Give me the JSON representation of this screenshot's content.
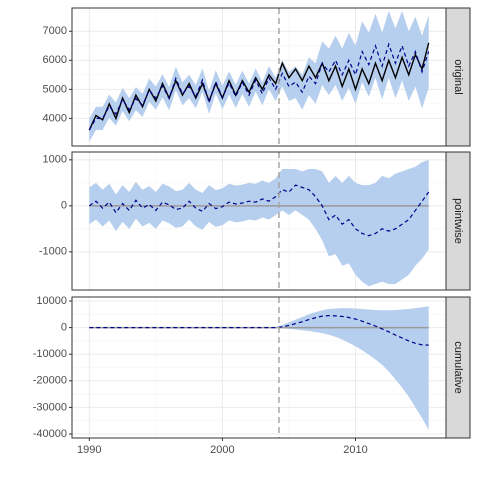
{
  "chart_data": [
    {
      "type": "line",
      "facet": "original",
      "ylim": [
        3050,
        7800
      ],
      "yticks": [
        4000,
        5000,
        6000,
        7000
      ],
      "grid": true,
      "band": {
        "color": "#b7cfee",
        "lower": [
          3200,
          3600,
          3600,
          4020,
          3750,
          4250,
          3900,
          4280,
          4050,
          4570,
          4300,
          4720,
          4280,
          4980,
          4450,
          4700,
          4350,
          4920,
          4150,
          4860,
          4320,
          4820,
          4360,
          4840,
          4400,
          4920,
          4450,
          5000,
          4600,
          5100,
          4600,
          4700,
          4300,
          4800,
          4500,
          5150,
          4800,
          5150,
          4600,
          5050,
          4500,
          5250,
          4750,
          5400,
          4650,
          5400,
          4700,
          5300,
          4600,
          5100,
          4350,
          5050
        ],
        "upper": [
          4000,
          4400,
          4400,
          4820,
          4550,
          5050,
          4700,
          5080,
          4850,
          5370,
          5100,
          5520,
          5080,
          5780,
          5250,
          5500,
          5150,
          5720,
          4950,
          5660,
          5120,
          5620,
          5160,
          5640,
          5200,
          5720,
          5250,
          5800,
          5400,
          6000,
          5600,
          5800,
          5500,
          6100,
          5900,
          6650,
          6400,
          6850,
          6400,
          6950,
          6500,
          7350,
          6950,
          7600,
          6950,
          7700,
          7100,
          7700,
          7000,
          7500,
          6850,
          7550
        ]
      },
      "series": [
        {
          "color": "#000000",
          "dash": false,
          "values": [
            3600,
            4100,
            3950,
            4500,
            4000,
            4700,
            4200,
            4800,
            4400,
            5000,
            4600,
            5200,
            4700,
            5300,
            4800,
            5200,
            4700,
            5200,
            4600,
            5200,
            4700,
            5300,
            4800,
            5300,
            4900,
            5400,
            5000,
            5500,
            5200,
            5900,
            5400,
            5700,
            5300,
            5800,
            5400,
            5900,
            5300,
            5800,
            5100,
            5700,
            5000,
            5700,
            5200,
            5900,
            5300,
            6000,
            5400,
            6100,
            5500,
            6200,
            5700,
            6600
          ]
        },
        {
          "color": "#00008b",
          "dash": true,
          "values": [
            3600,
            4000,
            4000,
            4420,
            4150,
            4650,
            4300,
            4680,
            4450,
            4970,
            4700,
            5120,
            4680,
            5380,
            4850,
            5100,
            4750,
            5320,
            4550,
            5260,
            4720,
            5220,
            4760,
            5240,
            4800,
            5320,
            4850,
            5400,
            5000,
            5550,
            5100,
            5250,
            4900,
            5450,
            5200,
            5900,
            5600,
            6000,
            5500,
            6000,
            5500,
            6300,
            5850,
            6500,
            5800,
            6550,
            5900,
            6500,
            5800,
            6300,
            5600,
            6300
          ]
        }
      ]
    },
    {
      "type": "line",
      "facet": "pointwise",
      "ylim": [
        -1830,
        1170
      ],
      "yticks": [
        -1000,
        0,
        1000
      ],
      "grid": true,
      "hline": 0,
      "band": {
        "color": "#b7cfee",
        "lower": [
          -400,
          -300,
          -450,
          -320,
          -550,
          -350,
          -500,
          -280,
          -450,
          -370,
          -500,
          -320,
          -380,
          -480,
          -450,
          -300,
          -450,
          -520,
          -350,
          -460,
          -420,
          -320,
          -360,
          -340,
          -300,
          -320,
          -250,
          -300,
          -200,
          -100,
          -200,
          -100,
          -200,
          -300,
          -500,
          -750,
          -1100,
          -1050,
          -1300,
          -1250,
          -1500,
          -1650,
          -1750,
          -1700,
          -1650,
          -1700,
          -1700,
          -1600,
          -1500,
          -1300,
          -1150,
          -950
        ],
        "upper": [
          400,
          500,
          350,
          480,
          250,
          450,
          300,
          520,
          350,
          430,
          300,
          480,
          420,
          320,
          350,
          500,
          350,
          280,
          450,
          340,
          380,
          480,
          440,
          460,
          500,
          480,
          550,
          500,
          600,
          800,
          800,
          800,
          750,
          800,
          800,
          750,
          500,
          650,
          500,
          650,
          500,
          450,
          450,
          500,
          650,
          600,
          700,
          750,
          800,
          850,
          950,
          1000
        ]
      },
      "series": [
        {
          "color": "#00008b",
          "dash": true,
          "values": [
            0,
            100,
            -50,
            80,
            -150,
            50,
            -100,
            120,
            -50,
            30,
            -100,
            80,
            20,
            -80,
            -50,
            100,
            -50,
            -120,
            50,
            -60,
            -20,
            80,
            40,
            60,
            100,
            80,
            150,
            100,
            200,
            350,
            300,
            450,
            400,
            350,
            200,
            0,
            -300,
            -200,
            -400,
            -300,
            -500,
            -600,
            -650,
            -600,
            -500,
            -550,
            -500,
            -400,
            -300,
            -100,
            100,
            300
          ]
        }
      ]
    },
    {
      "type": "line",
      "facet": "cumulative",
      "ylim": [
        -41500,
        11500
      ],
      "yticks": [
        -40000,
        -30000,
        -20000,
        -10000,
        0,
        10000
      ],
      "grid": true,
      "hline": 0,
      "xlim": [
        1988.7,
        2016.8
      ],
      "xticks": [
        1990,
        2000,
        2010
      ],
      "vline": 2004.25,
      "x": [
        1990,
        1990.5,
        1991,
        1991.5,
        1992,
        1992.5,
        1993,
        1993.5,
        1994,
        1994.5,
        1995,
        1995.5,
        1996,
        1996.5,
        1997,
        1997.5,
        1998,
        1998.5,
        1999,
        1999.5,
        2000,
        2000.5,
        2001,
        2001.5,
        2002,
        2002.5,
        2003,
        2003.5,
        2004,
        2004.5,
        2005,
        2005.5,
        2006,
        2006.5,
        2007,
        2007.5,
        2008,
        2008.5,
        2009,
        2009.5,
        2010,
        2010.5,
        2011,
        2011.5,
        2012,
        2012.5,
        2013,
        2013.5,
        2014,
        2014.5,
        2015,
        2015.5
      ],
      "band": {
        "color": "#b7cfee",
        "lower": [
          0,
          0,
          0,
          0,
          0,
          0,
          0,
          0,
          0,
          0,
          0,
          0,
          0,
          0,
          0,
          0,
          0,
          0,
          0,
          0,
          0,
          0,
          0,
          0,
          0,
          0,
          0,
          0,
          0,
          -300,
          -500,
          -700,
          -1000,
          -1300,
          -1700,
          -2100,
          -2700,
          -3500,
          -4500,
          -5700,
          -7000,
          -8500,
          -10200,
          -12000,
          -14000,
          -16500,
          -19500,
          -22500,
          -26000,
          -30000,
          -34000,
          -38500
        ],
        "upper": [
          0,
          0,
          0,
          0,
          0,
          0,
          0,
          0,
          0,
          0,
          0,
          0,
          0,
          0,
          0,
          0,
          0,
          0,
          0,
          0,
          0,
          0,
          0,
          0,
          0,
          0,
          0,
          0,
          0,
          1000,
          2000,
          3000,
          4000,
          5000,
          5800,
          6500,
          7000,
          7200,
          7300,
          7300,
          7200,
          7000,
          6800,
          6600,
          6500,
          6500,
          6600,
          6800,
          7000,
          7300,
          7600,
          8000
        ]
      },
      "series": [
        {
          "color": "#00008b",
          "dash": true,
          "values": [
            0,
            0,
            0,
            0,
            0,
            0,
            0,
            0,
            0,
            0,
            0,
            0,
            0,
            0,
            0,
            0,
            0,
            0,
            0,
            0,
            0,
            0,
            0,
            0,
            0,
            0,
            0,
            0,
            0,
            300,
            800,
            1500,
            2200,
            3000,
            3700,
            4300,
            4500,
            4400,
            4200,
            3800,
            3200,
            2400,
            1500,
            600,
            -500,
            -1600,
            -2800,
            -3900,
            -5000,
            -5900,
            -6500,
            -6600
          ]
        }
      ]
    }
  ]
}
